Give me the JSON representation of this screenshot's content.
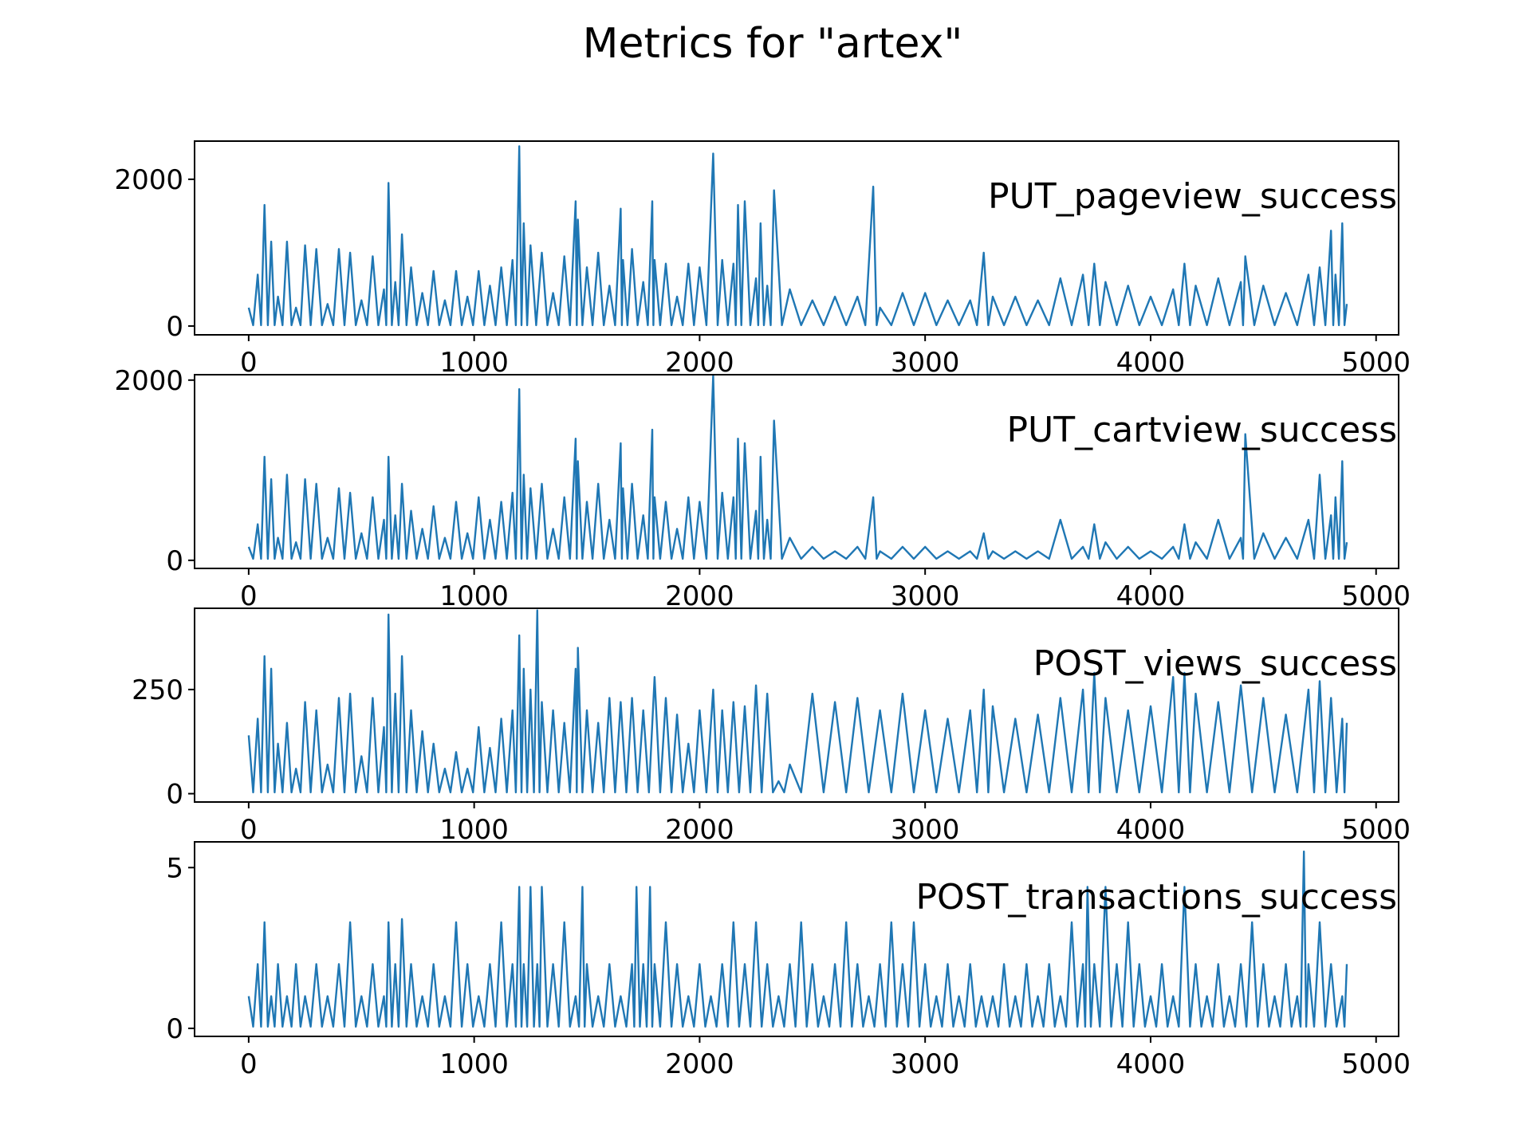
{
  "figure": {
    "title": "Metrics for \"artex\""
  },
  "colors": {
    "series": "#1f77b4",
    "axes": "#000000",
    "background": "#ffffff"
  },
  "chart_data": [
    {
      "type": "line",
      "label": "PUT_pageview_success",
      "xlim": [
        -240,
        5100
      ],
      "ylim": [
        -120,
        2520
      ],
      "xticks": [
        0,
        1000,
        2000,
        3000,
        4000,
        5000
      ],
      "yticks": [
        0,
        2000
      ],
      "x": [
        0,
        40,
        70,
        100,
        130,
        170,
        210,
        250,
        300,
        350,
        400,
        450,
        500,
        550,
        600,
        620,
        650,
        680,
        720,
        770,
        820,
        870,
        920,
        970,
        1020,
        1070,
        1120,
        1170,
        1200,
        1220,
        1250,
        1300,
        1350,
        1400,
        1450,
        1460,
        1500,
        1550,
        1600,
        1650,
        1660,
        1700,
        1750,
        1790,
        1800,
        1850,
        1900,
        1950,
        2000,
        2060,
        2100,
        2150,
        2170,
        2200,
        2250,
        2270,
        2300,
        2330,
        2400,
        2500,
        2600,
        2700,
        2770,
        2800,
        2900,
        3000,
        3100,
        3200,
        3260,
        3300,
        3400,
        3500,
        3600,
        3700,
        3750,
        3800,
        3900,
        4000,
        4100,
        4150,
        4200,
        4300,
        4400,
        4420,
        4500,
        4600,
        4700,
        4750,
        4800,
        4820,
        4850,
        4870
      ],
      "y": [
        250,
        700,
        1650,
        1150,
        400,
        1150,
        250,
        1100,
        1050,
        300,
        1050,
        1000,
        350,
        950,
        500,
        1950,
        600,
        1250,
        800,
        450,
        750,
        350,
        750,
        400,
        750,
        550,
        800,
        900,
        2450,
        1400,
        1100,
        1000,
        450,
        950,
        1700,
        1450,
        800,
        1000,
        550,
        1600,
        900,
        1050,
        600,
        1700,
        900,
        850,
        400,
        850,
        800,
        2350,
        900,
        850,
        1650,
        1700,
        650,
        1400,
        550,
        1850,
        500,
        350,
        400,
        400,
        1900,
        250,
        450,
        450,
        350,
        350,
        1000,
        400,
        400,
        350,
        650,
        700,
        850,
        600,
        550,
        400,
        500,
        850,
        550,
        650,
        600,
        950,
        550,
        450,
        700,
        800,
        1300,
        700,
        1400,
        300
      ]
    },
    {
      "type": "line",
      "label": "PUT_cartview_success",
      "xlim": [
        -240,
        5100
      ],
      "ylim": [
        -90,
        2060
      ],
      "xticks": [
        0,
        1000,
        2000,
        3000,
        4000,
        5000
      ],
      "yticks": [
        0,
        2000
      ],
      "x": [
        0,
        40,
        70,
        100,
        130,
        170,
        210,
        250,
        300,
        350,
        400,
        450,
        500,
        550,
        600,
        620,
        650,
        680,
        720,
        770,
        820,
        870,
        920,
        970,
        1020,
        1070,
        1120,
        1170,
        1200,
        1220,
        1250,
        1300,
        1350,
        1400,
        1450,
        1460,
        1500,
        1550,
        1600,
        1650,
        1660,
        1700,
        1750,
        1790,
        1800,
        1850,
        1900,
        1950,
        2000,
        2060,
        2100,
        2150,
        2170,
        2200,
        2250,
        2270,
        2300,
        2330,
        2400,
        2500,
        2600,
        2700,
        2770,
        2800,
        2900,
        3000,
        3100,
        3200,
        3260,
        3300,
        3400,
        3500,
        3600,
        3700,
        3750,
        3800,
        3900,
        4000,
        4100,
        4150,
        4200,
        4300,
        4400,
        4420,
        4500,
        4600,
        4700,
        4750,
        4800,
        4820,
        4850,
        4870
      ],
      "y": [
        150,
        400,
        1150,
        900,
        250,
        950,
        200,
        900,
        850,
        250,
        800,
        750,
        300,
        700,
        450,
        1150,
        500,
        850,
        550,
        350,
        600,
        250,
        650,
        300,
        700,
        450,
        650,
        750,
        1900,
        950,
        800,
        850,
        350,
        700,
        1350,
        1100,
        650,
        850,
        450,
        1300,
        800,
        850,
        500,
        1450,
        700,
        650,
        350,
        700,
        650,
        2050,
        750,
        700,
        1350,
        1300,
        550,
        1150,
        450,
        1550,
        250,
        150,
        100,
        150,
        700,
        100,
        150,
        150,
        100,
        100,
        300,
        100,
        100,
        100,
        450,
        150,
        400,
        200,
        150,
        100,
        150,
        400,
        200,
        450,
        250,
        1400,
        300,
        250,
        450,
        950,
        500,
        700,
        1100,
        200
      ]
    },
    {
      "type": "line",
      "label": "POST_views_success",
      "xlim": [
        -240,
        5100
      ],
      "ylim": [
        -20,
        445
      ],
      "xticks": [
        0,
        1000,
        2000,
        3000,
        4000,
        5000
      ],
      "yticks": [
        0,
        250
      ],
      "x": [
        0,
        40,
        70,
        100,
        130,
        170,
        210,
        250,
        300,
        350,
        400,
        450,
        500,
        550,
        600,
        620,
        650,
        680,
        720,
        770,
        820,
        870,
        920,
        970,
        1020,
        1070,
        1120,
        1170,
        1200,
        1220,
        1250,
        1280,
        1300,
        1350,
        1400,
        1450,
        1460,
        1500,
        1550,
        1600,
        1650,
        1700,
        1750,
        1800,
        1850,
        1900,
        1950,
        2000,
        2060,
        2100,
        2150,
        2200,
        2250,
        2300,
        2350,
        2400,
        2500,
        2600,
        2700,
        2800,
        2900,
        3000,
        3100,
        3200,
        3260,
        3300,
        3400,
        3500,
        3600,
        3700,
        3750,
        3800,
        3900,
        4000,
        4100,
        4150,
        4200,
        4300,
        4400,
        4500,
        4600,
        4700,
        4750,
        4800,
        4850,
        4870
      ],
      "y": [
        140,
        180,
        330,
        300,
        120,
        170,
        60,
        220,
        200,
        70,
        230,
        240,
        90,
        230,
        160,
        430,
        240,
        330,
        200,
        150,
        120,
        60,
        100,
        60,
        160,
        110,
        180,
        200,
        380,
        300,
        250,
        440,
        220,
        200,
        170,
        300,
        350,
        200,
        170,
        230,
        220,
        230,
        200,
        280,
        230,
        190,
        120,
        200,
        250,
        200,
        220,
        210,
        260,
        240,
        30,
        70,
        240,
        220,
        230,
        200,
        240,
        200,
        180,
        200,
        250,
        210,
        180,
        190,
        230,
        250,
        290,
        230,
        200,
        210,
        280,
        290,
        240,
        220,
        260,
        230,
        190,
        250,
        270,
        230,
        180,
        170
      ]
    },
    {
      "type": "line",
      "label": "POST_transactions_success",
      "xlim": [
        -240,
        5100
      ],
      "ylim": [
        -0.25,
        5.8
      ],
      "xticks": [
        0,
        1000,
        2000,
        3000,
        4000,
        5000
      ],
      "yticks": [
        0,
        5
      ],
      "x": [
        0,
        40,
        70,
        100,
        130,
        170,
        210,
        250,
        300,
        350,
        400,
        450,
        500,
        550,
        600,
        620,
        650,
        680,
        720,
        770,
        820,
        870,
        920,
        970,
        1020,
        1070,
        1120,
        1170,
        1200,
        1220,
        1250,
        1280,
        1300,
        1350,
        1400,
        1450,
        1480,
        1500,
        1550,
        1600,
        1650,
        1700,
        1720,
        1750,
        1780,
        1800,
        1850,
        1900,
        1950,
        2000,
        2050,
        2100,
        2150,
        2200,
        2250,
        2300,
        2350,
        2400,
        2450,
        2500,
        2550,
        2600,
        2650,
        2700,
        2750,
        2800,
        2850,
        2900,
        2950,
        3000,
        3050,
        3100,
        3150,
        3200,
        3250,
        3300,
        3350,
        3400,
        3450,
        3500,
        3550,
        3600,
        3650,
        3700,
        3720,
        3750,
        3800,
        3850,
        3900,
        3950,
        4000,
        4050,
        4100,
        4150,
        4200,
        4250,
        4300,
        4350,
        4400,
        4450,
        4500,
        4550,
        4600,
        4650,
        4680,
        4700,
        4750,
        4800,
        4850,
        4870
      ],
      "y": [
        1,
        2,
        3.3,
        1,
        2,
        1,
        2,
        1,
        2,
        1,
        2,
        3.3,
        1,
        2,
        1,
        3.3,
        2,
        3.4,
        2,
        1,
        2,
        1,
        3.3,
        2,
        1,
        2,
        3.3,
        2,
        4.4,
        2,
        4.4,
        2,
        4.4,
        2,
        3.3,
        1,
        4.4,
        2,
        1,
        2,
        1,
        2,
        4.4,
        2,
        4.4,
        2,
        3.3,
        2,
        1,
        2,
        1,
        2,
        3.3,
        2,
        3.3,
        2,
        1,
        2,
        3.3,
        2,
        1,
        2,
        3.3,
        2,
        1,
        2,
        3.3,
        2,
        3.3,
        2,
        1,
        2,
        1,
        2,
        1,
        1,
        2,
        1,
        2,
        1,
        2,
        1,
        3.3,
        2,
        4.4,
        2,
        4.4,
        2,
        3.3,
        2,
        1,
        2,
        1,
        4.4,
        2,
        1,
        2,
        1,
        2,
        3.3,
        2,
        1,
        2,
        1,
        5.5,
        2,
        3.3,
        2,
        1,
        2
      ]
    }
  ]
}
